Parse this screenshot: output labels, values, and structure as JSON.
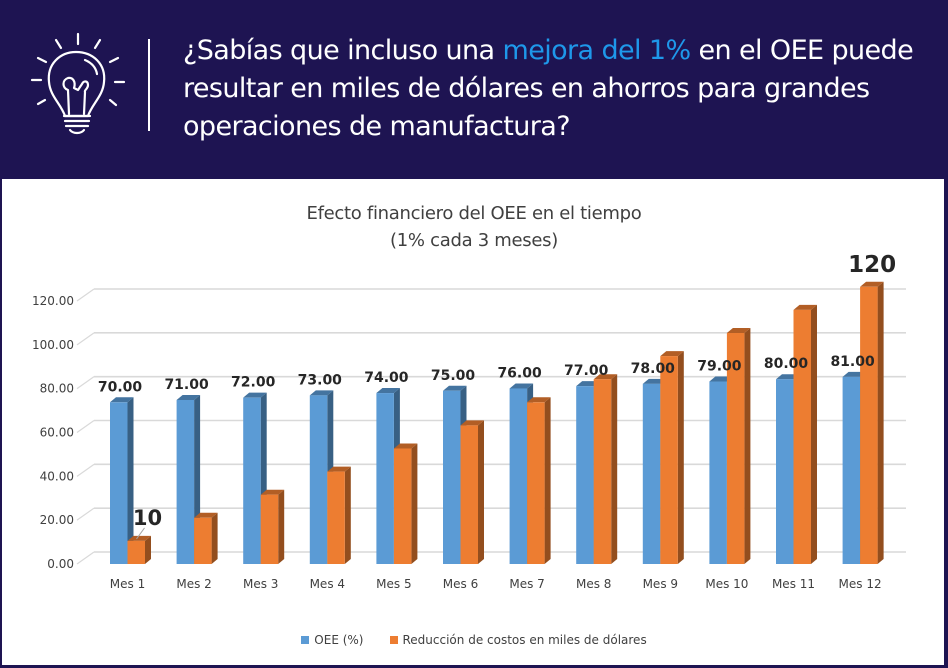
{
  "header": {
    "icon": "lightbulb-icon",
    "headline_parts": [
      {
        "text": "¿Sabías que incluso una ",
        "highlight": false
      },
      {
        "text": "mejora del 1%",
        "highlight": true
      },
      {
        "text": " en el OEE puede resultar en miles de dólares en ahorros para grandes operaciones de manufactura?",
        "highlight": false
      }
    ],
    "highlight_color": "#1e98ea"
  },
  "chart_data": {
    "type": "bar",
    "style": "3d-clustered-column",
    "title": "Efecto financiero del OEE en el tiempo",
    "subtitle": "(1% cada 3 meses)",
    "xlabel": "",
    "ylabel": "",
    "ylim": [
      0,
      120
    ],
    "yticks": [
      "0.00",
      "20.00",
      "40.00",
      "60.00",
      "80.00",
      "100.00",
      "120.00"
    ],
    "grid": true,
    "legend_position": "bottom",
    "categories": [
      "Mes 1",
      "Mes 2",
      "Mes 3",
      "Mes 4",
      "Mes 5",
      "Mes 6",
      "Mes 7",
      "Mes 8",
      "Mes 9",
      "Mes 10",
      "Mes 11",
      "Mes 12"
    ],
    "series": [
      {
        "name": "OEE (%)",
        "color": "#5b9bd5",
        "values": [
          70,
          71,
          72,
          73,
          74,
          75,
          76,
          77,
          78,
          79,
          80,
          81
        ],
        "data_labels": [
          "70.00",
          "71.00",
          "72.00",
          "73.00",
          "74.00",
          "75.00",
          "76.00",
          "77.00",
          "78.00",
          "79.00",
          "80.00",
          "81.00"
        ]
      },
      {
        "name": "Reducción de costos en miles de dólares",
        "color": "#ed7d31",
        "values": [
          10,
          20,
          30,
          40,
          50,
          60,
          70,
          80,
          90,
          100,
          110,
          120
        ],
        "data_labels": [
          "10",
          "",
          "",
          "",
          "",
          "",
          "",
          "",
          "",
          "",
          "",
          "120"
        ]
      }
    ]
  }
}
